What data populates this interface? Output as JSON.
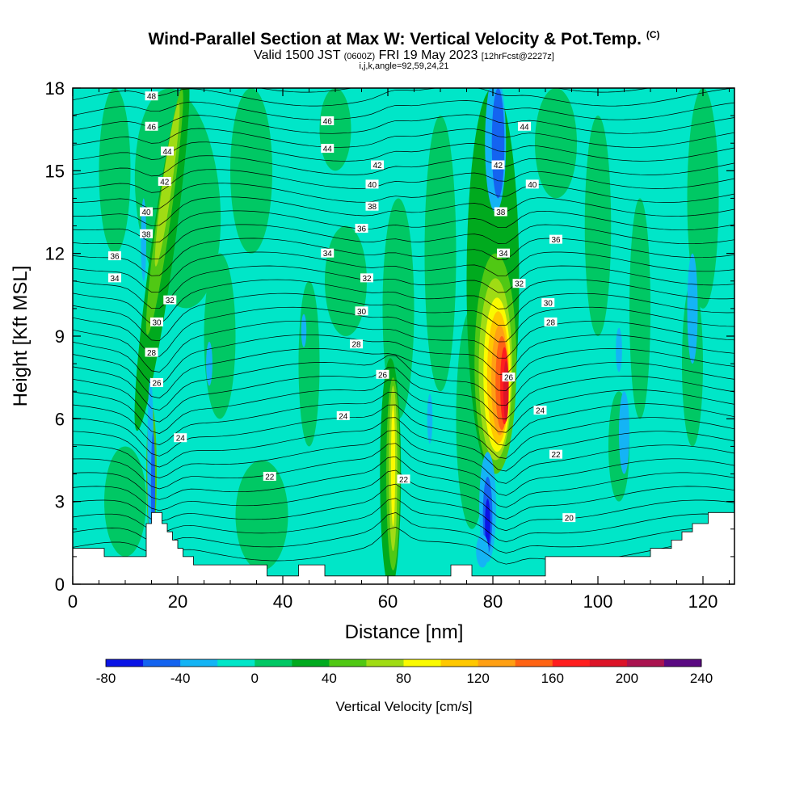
{
  "title": {
    "main": "Wind-Parallel Section at Max W: Vertical Velocity & Pot.Temp.",
    "copyright": "(C)",
    "valid_prefix": "Valid 1500 JST",
    "valid_z": "(0600Z)",
    "valid_date": "FRI 19 May 2023",
    "forecast": "[12hrFcst@2227z]",
    "indices": "i,j,k,angle=92,59,24,21"
  },
  "chart_data": {
    "type": "heatmap",
    "xlabel": "Distance [nm]",
    "ylabel": "Height [Kft MSL]",
    "xlim": [
      0,
      126
    ],
    "ylim": [
      0,
      18
    ],
    "xticks": [
      0,
      20,
      40,
      60,
      80,
      100,
      120
    ],
    "yticks": [
      0,
      3,
      6,
      9,
      12,
      15,
      18
    ],
    "colorbar": {
      "label": "Vertical Velocity [cm/s]",
      "ticks": [
        -80,
        -40,
        0,
        40,
        80,
        120,
        160,
        200,
        240
      ],
      "bins": [
        -80,
        -60,
        -40,
        -20,
        0,
        20,
        40,
        60,
        80,
        100,
        120,
        140,
        160,
        180,
        200,
        220,
        240
      ],
      "colors": [
        "#0a14e6",
        "#1464f0",
        "#14b4f5",
        "#00e6c8",
        "#00c864",
        "#00aa1e",
        "#50c814",
        "#a0dc14",
        "#fafa00",
        "#ffc800",
        "#ffa014",
        "#ff6414",
        "#ff1e1e",
        "#dc1428",
        "#aa1450",
        "#5a0a82"
      ]
    },
    "terrain_profile": [
      [
        0,
        1.3
      ],
      [
        6,
        1.3
      ],
      [
        6,
        1.0
      ],
      [
        14,
        1.0
      ],
      [
        14,
        2.2
      ],
      [
        15,
        2.2
      ],
      [
        15,
        2.6
      ],
      [
        17,
        2.6
      ],
      [
        17,
        2.2
      ],
      [
        18,
        2.2
      ],
      [
        18,
        1.9
      ],
      [
        19,
        1.9
      ],
      [
        19,
        1.6
      ],
      [
        20,
        1.6
      ],
      [
        20,
        1.3
      ],
      [
        21,
        1.3
      ],
      [
        21,
        1.0
      ],
      [
        23,
        1.0
      ],
      [
        23,
        0.7
      ],
      [
        37,
        0.7
      ],
      [
        37,
        0.3
      ],
      [
        43,
        0.3
      ],
      [
        43,
        0.7
      ],
      [
        48,
        0.7
      ],
      [
        48,
        0.3
      ],
      [
        72,
        0.3
      ],
      [
        72,
        0.7
      ],
      [
        76,
        0.7
      ],
      [
        76,
        0.3
      ],
      [
        90,
        0.3
      ],
      [
        90,
        1.0
      ],
      [
        110,
        1.0
      ],
      [
        110,
        1.3
      ],
      [
        114,
        1.3
      ],
      [
        114,
        1.6
      ],
      [
        116,
        1.6
      ],
      [
        116,
        1.9
      ],
      [
        118,
        1.9
      ],
      [
        118,
        2.2
      ],
      [
        121,
        2.2
      ],
      [
        121,
        2.6
      ],
      [
        126,
        2.6
      ]
    ],
    "isentrope_labels": [
      {
        "value": "48",
        "x": 15,
        "y": 17.7
      },
      {
        "value": "46",
        "x": 15,
        "y": 16.6
      },
      {
        "value": "44",
        "x": 18,
        "y": 15.7
      },
      {
        "value": "42",
        "x": 17.5,
        "y": 14.6
      },
      {
        "value": "40",
        "x": 14,
        "y": 13.5
      },
      {
        "value": "38",
        "x": 14,
        "y": 12.7
      },
      {
        "value": "36",
        "x": 8,
        "y": 11.9
      },
      {
        "value": "34",
        "x": 8,
        "y": 11.1
      },
      {
        "value": "32",
        "x": 18.5,
        "y": 10.3
      },
      {
        "value": "30",
        "x": 16,
        "y": 9.5
      },
      {
        "value": "28",
        "x": 15,
        "y": 8.4
      },
      {
        "value": "26",
        "x": 16,
        "y": 7.3
      },
      {
        "value": "24",
        "x": 20.5,
        "y": 5.3
      },
      {
        "value": "22",
        "x": 37.5,
        "y": 3.9
      },
      {
        "value": "46",
        "x": 48.5,
        "y": 16.8
      },
      {
        "value": "44",
        "x": 48.5,
        "y": 15.8
      },
      {
        "value": "42",
        "x": 58,
        "y": 15.2
      },
      {
        "value": "40",
        "x": 57,
        "y": 14.5
      },
      {
        "value": "38",
        "x": 57,
        "y": 13.7
      },
      {
        "value": "36",
        "x": 55,
        "y": 12.9
      },
      {
        "value": "34",
        "x": 48.5,
        "y": 12.0
      },
      {
        "value": "32",
        "x": 56,
        "y": 11.1
      },
      {
        "value": "30",
        "x": 55,
        "y": 9.9
      },
      {
        "value": "28",
        "x": 54,
        "y": 8.7
      },
      {
        "value": "26",
        "x": 59,
        "y": 7.6
      },
      {
        "value": "24",
        "x": 51.5,
        "y": 6.1
      },
      {
        "value": "22",
        "x": 63,
        "y": 3.8
      },
      {
        "value": "44",
        "x": 86,
        "y": 16.6
      },
      {
        "value": "42",
        "x": 81,
        "y": 15.2
      },
      {
        "value": "40",
        "x": 87.5,
        "y": 14.5
      },
      {
        "value": "38",
        "x": 81.5,
        "y": 13.5
      },
      {
        "value": "36",
        "x": 92,
        "y": 12.5
      },
      {
        "value": "34",
        "x": 82,
        "y": 12.0
      },
      {
        "value": "32",
        "x": 85,
        "y": 10.9
      },
      {
        "value": "30",
        "x": 90.5,
        "y": 10.2
      },
      {
        "value": "28",
        "x": 91,
        "y": 9.5
      },
      {
        "value": "26",
        "x": 83,
        "y": 7.5
      },
      {
        "value": "24",
        "x": 89,
        "y": 6.3
      },
      {
        "value": "22",
        "x": 92,
        "y": 4.7
      },
      {
        "value": "20",
        "x": 94.5,
        "y": 2.4
      }
    ]
  }
}
